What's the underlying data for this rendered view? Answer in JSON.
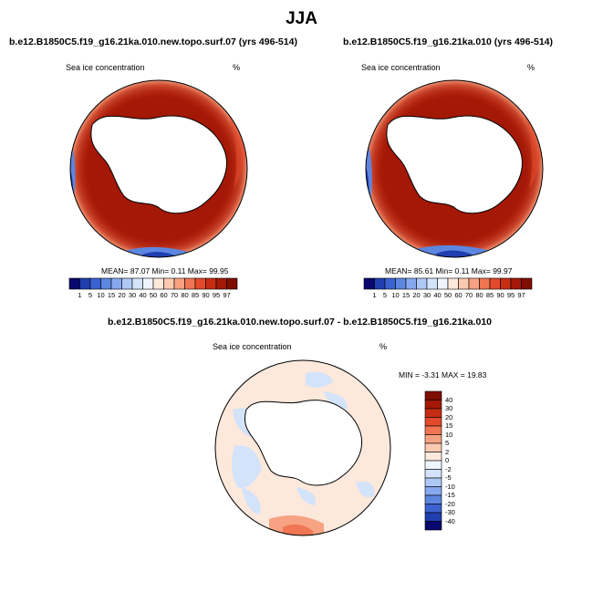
{
  "main_title": "JJA",
  "panels": [
    {
      "title": "b.e12.B1850C5.f19_g16.21ka.010.new.topo.surf.07 (yrs 496-514)",
      "field": "Sea ice concentration",
      "units": "%",
      "stats": "MEAN= 87.07  Min= 0.11  Max= 99.95"
    },
    {
      "title": "b.e12.B1850C5.f19_g16.21ka.010 (yrs 496-514)",
      "field": "Sea ice concentration",
      "units": "%",
      "stats": "MEAN= 85.61  Min= 0.11  Max= 99.97"
    }
  ],
  "diff_panel": {
    "title": "b.e12.B1850C5.f19_g16.21ka.010.new.topo.surf.07 - b.e12.B1850C5.f19_g16.21ka.010",
    "field": "Sea ice concentration",
    "units": "%",
    "stats": "MIN = -3.31 MAX = 19.83"
  },
  "abs_colorbar": {
    "labels": [
      "1",
      "5",
      "10",
      "15",
      "20",
      "30",
      "40",
      "50",
      "60",
      "70",
      "80",
      "85",
      "90",
      "95",
      "97"
    ],
    "colors": [
      "#08086e",
      "#1f3fb0",
      "#3b62cf",
      "#5d86e0",
      "#86a8ee",
      "#aec8f5",
      "#d3e3fa",
      "#eef5fd",
      "#fde8dc",
      "#fbc9b0",
      "#f7a282",
      "#f07552",
      "#e34a2a",
      "#c72d13",
      "#a41806",
      "#7f0d00"
    ]
  },
  "diff_colorbar": {
    "labels": [
      "40",
      "30",
      "20",
      "15",
      "10",
      "5",
      "2",
      "0",
      "-2",
      "-5",
      "-10",
      "-15",
      "-20",
      "-30",
      "-40"
    ],
    "colors": [
      "#7f0d00",
      "#a41806",
      "#c72d13",
      "#e34a2a",
      "#f07552",
      "#f7a282",
      "#fbc9b0",
      "#fde8dc",
      "#eef5fd",
      "#d3e3fa",
      "#aec8f5",
      "#86a8ee",
      "#5d86e0",
      "#3b62cf",
      "#1f3fb0",
      "#08086e"
    ]
  }
}
